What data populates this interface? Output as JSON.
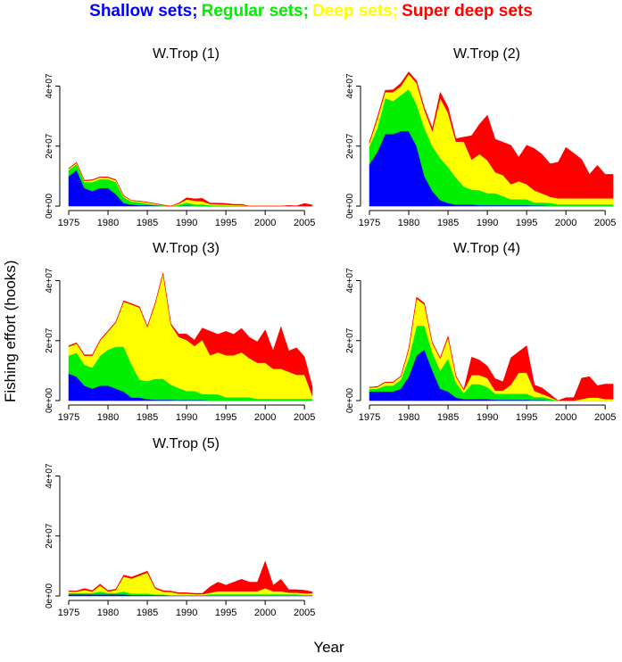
{
  "title_parts": [
    {
      "text": "Shallow sets;",
      "color": "#0000ff"
    },
    {
      "text": "Regular sets;",
      "color": "#00ee00"
    },
    {
      "text": "Deep sets;",
      "color": "#ffff00"
    },
    {
      "text": "Super deep sets",
      "color": "#ff0000"
    }
  ],
  "ylabel": "Fishing effort (hooks)",
  "xlabel": "Year",
  "chart_data": [
    {
      "type": "area",
      "stacked": true,
      "title": "W.Trop (1)",
      "x_ticks": [
        1975,
        1980,
        1985,
        1990,
        1995,
        2000,
        2005
      ],
      "y_ticks": [
        "0e+00",
        "2e+07",
        "4e+07"
      ],
      "y_tick_values": [
        0,
        20000000,
        40000000
      ],
      "xlim": [
        1975,
        2006
      ],
      "ylim": [
        0,
        47000000
      ],
      "x": [
        1975,
        1976,
        1977,
        1978,
        1979,
        1980,
        1981,
        1982,
        1983,
        1984,
        1985,
        1986,
        1987,
        1988,
        1989,
        1990,
        1991,
        1992,
        1993,
        1994,
        1995,
        1996,
        1997,
        1998,
        1999,
        2000,
        2001,
        2002,
        2003,
        2004,
        2005,
        2006
      ],
      "series": [
        {
          "name": "Shallow sets",
          "color": "#0000ff",
          "values": [
            10,
            12,
            6,
            5,
            6,
            6,
            4,
            1,
            0.5,
            0.3,
            0.3,
            0.2,
            0.1,
            0,
            0.1,
            0.2,
            0.1,
            0.1,
            0,
            0,
            0,
            0,
            0,
            0,
            0,
            0,
            0,
            0,
            0,
            0,
            0,
            0
          ]
        },
        {
          "name": "Regular sets",
          "color": "#00ee00",
          "values": [
            2,
            2,
            2,
            3,
            3,
            3,
            4,
            2,
            1,
            1,
            0.5,
            0.3,
            0.1,
            0,
            0.3,
            1,
            0.5,
            0.5,
            0.3,
            0.2,
            0.2,
            0.1,
            0.1,
            0,
            0,
            0,
            0,
            0,
            0,
            0,
            0,
            0
          ]
        },
        {
          "name": "Deep sets",
          "color": "#ffff00",
          "values": [
            0.4,
            0.4,
            0.4,
            0.6,
            0.6,
            0.5,
            0.6,
            0.4,
            0.3,
            0.3,
            0.4,
            0.3,
            0.1,
            0,
            0.4,
            1,
            1.2,
            1,
            0.4,
            0.4,
            0.3,
            0.2,
            0.2,
            0,
            0,
            0,
            0,
            0,
            0,
            0,
            0,
            0
          ]
        },
        {
          "name": "Super deep sets",
          "color": "#ff0000",
          "values": [
            0.2,
            0.2,
            0.2,
            0.2,
            0.2,
            0.2,
            0.2,
            0.1,
            0.1,
            0.1,
            0.1,
            0.1,
            0.1,
            0,
            0.2,
            0.6,
            0.6,
            1,
            0.3,
            0.4,
            0.4,
            0.3,
            0.3,
            0,
            0,
            0,
            0,
            0,
            0.2,
            0.1,
            0.9,
            0.4
          ]
        }
      ]
    },
    {
      "type": "area",
      "stacked": true,
      "title": "W.Trop (2)",
      "x_ticks": [
        1975,
        1980,
        1985,
        1990,
        1995,
        2000,
        2005
      ],
      "y_ticks": [
        "0e+00",
        "2e+07",
        "4e+07"
      ],
      "y_tick_values": [
        0,
        20000000,
        40000000
      ],
      "xlim": [
        1975,
        2006
      ],
      "ylim": [
        0,
        47000000
      ],
      "x": [
        1975,
        1976,
        1977,
        1978,
        1979,
        1980,
        1981,
        1982,
        1983,
        1984,
        1985,
        1986,
        1987,
        1988,
        1989,
        1990,
        1991,
        1992,
        1993,
        1994,
        1995,
        1996,
        1997,
        1998,
        1999,
        2000,
        2001,
        2002,
        2003,
        2004,
        2005,
        2006
      ],
      "series": [
        {
          "name": "Shallow sets",
          "color": "#0000ff",
          "values": [
            14,
            18,
            24,
            24,
            25,
            25,
            20,
            10,
            5,
            2,
            1,
            0.5,
            0.5,
            0.5,
            0.3,
            0.3,
            0.3,
            0.3,
            0.3,
            0.3,
            0.3,
            0.2,
            0.2,
            0.1,
            0.1,
            0.1,
            0.1,
            0.1,
            0.1,
            0.1,
            0.1,
            0.1
          ]
        },
        {
          "name": "Regular sets",
          "color": "#00ee00",
          "values": [
            6,
            8,
            12,
            11,
            12,
            14,
            14,
            16,
            15,
            14,
            12,
            9,
            6,
            5,
            5,
            4,
            4,
            3,
            2,
            2,
            2,
            1,
            1,
            1,
            0.5,
            0.5,
            0.5,
            0.5,
            0.5,
            0.5,
            0.5,
            0.5
          ]
        },
        {
          "name": "Deep sets",
          "color": "#ffff00",
          "values": [
            1,
            3,
            2,
            3,
            3,
            5,
            7,
            6,
            5,
            20,
            18,
            12,
            15,
            10,
            12,
            11,
            7,
            7,
            5,
            6,
            5,
            4,
            3,
            2,
            2,
            2,
            2,
            2,
            2,
            2,
            2,
            2
          ]
        },
        {
          "name": "Super deep sets",
          "color": "#ff0000",
          "values": [
            0.4,
            0.6,
            0.6,
            0.8,
            1,
            0.8,
            0.8,
            0.8,
            1,
            2,
            2,
            1,
            1.5,
            8,
            10,
            15,
            11,
            11,
            13,
            8,
            13,
            14,
            13,
            11,
            12,
            17,
            15,
            13,
            8,
            11,
            8,
            8
          ]
        }
      ]
    },
    {
      "type": "area",
      "stacked": true,
      "title": "W.Trop (3)",
      "x_ticks": [
        1975,
        1980,
        1985,
        1990,
        1995,
        2000,
        2005
      ],
      "y_ticks": [
        "0e+00",
        "2e+07",
        "4e+07"
      ],
      "y_tick_values": [
        0,
        20000000,
        40000000
      ],
      "xlim": [
        1975,
        2006
      ],
      "ylim": [
        0,
        47000000
      ],
      "x": [
        1975,
        1976,
        1977,
        1978,
        1979,
        1980,
        1981,
        1982,
        1983,
        1984,
        1985,
        1986,
        1987,
        1988,
        1989,
        1990,
        1991,
        1992,
        1993,
        1994,
        1995,
        1996,
        1997,
        1998,
        1999,
        2000,
        2001,
        2002,
        2003,
        2004,
        2005,
        2006
      ],
      "series": [
        {
          "name": "Shallow sets",
          "color": "#0000ff",
          "values": [
            9,
            8,
            5,
            4,
            5,
            5,
            4,
            3,
            1,
            1,
            0.5,
            0.3,
            0.3,
            0.3,
            0.2,
            0.2,
            0.2,
            0.2,
            0.1,
            0.1,
            0.1,
            0.1,
            0.1,
            0.1,
            0.1,
            0.1,
            0.1,
            0.1,
            0.1,
            0.1,
            0.1,
            0.1
          ]
        },
        {
          "name": "Regular sets",
          "color": "#00ee00",
          "values": [
            6,
            8,
            7,
            7,
            10,
            12,
            14,
            15,
            11,
            6,
            6,
            7,
            7,
            5,
            4,
            3,
            3,
            2,
            2,
            2,
            1,
            1,
            1,
            1,
            0.5,
            0.5,
            0.5,
            0.5,
            0.5,
            0.5,
            0.5,
            0.5
          ]
        },
        {
          "name": "Deep sets",
          "color": "#ffff00",
          "values": [
            3,
            3,
            3,
            4,
            5,
            6,
            8,
            15,
            20,
            24,
            18,
            25,
            35,
            20,
            17,
            17,
            15,
            18,
            13,
            14,
            14,
            14,
            15,
            13,
            12,
            12,
            10,
            10,
            9,
            8,
            8,
            1
          ]
        },
        {
          "name": "Super deep sets",
          "color": "#ff0000",
          "values": [
            0.3,
            0.3,
            0.3,
            0.3,
            0.3,
            0.3,
            0.3,
            0.3,
            0.3,
            0.3,
            0.3,
            0.3,
            0.3,
            0.3,
            1,
            2,
            2,
            4,
            8,
            6,
            8,
            7,
            8,
            7,
            7,
            11,
            6,
            14,
            7,
            9,
            6,
            3
          ]
        }
      ]
    },
    {
      "type": "area",
      "stacked": true,
      "title": "W.Trop (4)",
      "x_ticks": [
        1975,
        1980,
        1985,
        1990,
        1995,
        2000,
        2005
      ],
      "y_ticks": [
        "0e+00",
        "2e+07",
        "4e+07"
      ],
      "y_tick_values": [
        0,
        20000000,
        40000000
      ],
      "xlim": [
        1975,
        2006
      ],
      "ylim": [
        0,
        47000000
      ],
      "x": [
        1975,
        1976,
        1977,
        1978,
        1979,
        1980,
        1981,
        1982,
        1983,
        1984,
        1985,
        1986,
        1987,
        1988,
        1989,
        1990,
        1991,
        1992,
        1993,
        1994,
        1995,
        1996,
        1997,
        1998,
        1999,
        2000,
        2001,
        2002,
        2003,
        2004,
        2005,
        2006
      ],
      "series": [
        {
          "name": "Shallow sets",
          "color": "#0000ff",
          "values": [
            3,
            3,
            3,
            3,
            4,
            8,
            15,
            17,
            10,
            4,
            3,
            1,
            0.5,
            0.5,
            0.5,
            0.5,
            0.3,
            0.3,
            0.3,
            0.3,
            0.3,
            0.2,
            0.2,
            0.1,
            0,
            0,
            0,
            0,
            0,
            0,
            0,
            0
          ]
        },
        {
          "name": "Regular sets",
          "color": "#00ee00",
          "values": [
            1,
            1,
            2,
            2,
            3,
            6,
            10,
            8,
            6,
            6,
            11,
            5,
            2,
            5,
            5,
            4,
            2,
            2,
            2,
            2,
            2,
            1,
            1,
            0.5,
            0,
            0,
            0,
            0,
            0,
            0,
            0,
            0
          ]
        },
        {
          "name": "Deep sets",
          "color": "#ffff00",
          "values": [
            0.3,
            0.5,
            1,
            1,
            1,
            3,
            9,
            7,
            3,
            4,
            7,
            2,
            1,
            3,
            3,
            3,
            1,
            1,
            3,
            7,
            7,
            2,
            1,
            0.5,
            0,
            0,
            0,
            0.5,
            1,
            1,
            0.5,
            0.5
          ]
        },
        {
          "name": "Super deep sets",
          "color": "#ff0000",
          "values": [
            0.2,
            0.2,
            0.2,
            0.2,
            0.2,
            0.3,
            0.5,
            0.5,
            0.3,
            0.3,
            0.5,
            0.3,
            0.2,
            6,
            5,
            4,
            4,
            3,
            9,
            7,
            9,
            2,
            2,
            1,
            0,
            1,
            1,
            7,
            7,
            4,
            5,
            5
          ]
        }
      ]
    },
    {
      "type": "area",
      "stacked": true,
      "title": "W.Trop (5)",
      "x_ticks": [
        1975,
        1980,
        1985,
        1990,
        1995,
        2000,
        2005
      ],
      "y_ticks": [
        "0e+00",
        "2e+07",
        "4e+07"
      ],
      "y_tick_values": [
        0,
        20000000,
        40000000
      ],
      "xlim": [
        1975,
        2006
      ],
      "ylim": [
        0,
        47000000
      ],
      "x": [
        1975,
        1976,
        1977,
        1978,
        1979,
        1980,
        1981,
        1982,
        1983,
        1984,
        1985,
        1986,
        1987,
        1988,
        1989,
        1990,
        1991,
        1992,
        1993,
        1994,
        1995,
        1996,
        1997,
        1998,
        1999,
        2000,
        2001,
        2002,
        2003,
        2004,
        2005,
        2006
      ],
      "series": [
        {
          "name": "Shallow sets",
          "color": "#0000ff",
          "values": [
            0.5,
            0.5,
            0.5,
            0.5,
            0.5,
            0.5,
            0.5,
            0.5,
            0.3,
            0.3,
            0.3,
            0.2,
            0.2,
            0.1,
            0.1,
            0.1,
            0.1,
            0.1,
            0.1,
            0.1,
            0.1,
            0.1,
            0.1,
            0.1,
            0.1,
            0.1,
            0.1,
            0.1,
            0.1,
            0.1,
            0.1,
            0.1
          ]
        },
        {
          "name": "Regular sets",
          "color": "#00ee00",
          "values": [
            0.5,
            0.5,
            0.5,
            0.5,
            1,
            0.5,
            0.5,
            1,
            0.5,
            0.5,
            0.5,
            0.3,
            0.3,
            0.2,
            0.2,
            0.2,
            0.2,
            0.2,
            0.5,
            0.5,
            0.5,
            0.5,
            0.5,
            0.5,
            0.5,
            0.5,
            0.5,
            0.5,
            0.5,
            0.5,
            0.3,
            0.3
          ]
        },
        {
          "name": "Deep sets",
          "color": "#ffff00",
          "values": [
            0.5,
            0.5,
            1,
            0.5,
            2,
            0.5,
            1,
            5,
            5,
            6,
            7,
            2,
            1,
            1,
            0.5,
            0.5,
            0.3,
            0.3,
            0.5,
            1,
            1,
            1,
            1,
            1,
            1,
            2,
            1,
            1,
            0.5,
            0.5,
            0.5,
            0.5
          ]
        },
        {
          "name": "Super deep sets",
          "color": "#ff0000",
          "values": [
            0.2,
            0.2,
            0.5,
            0.3,
            0.5,
            0.3,
            0.3,
            0.5,
            0.5,
            0.5,
            0.5,
            0.3,
            0.3,
            0.3,
            0.3,
            0.3,
            0.3,
            0.3,
            2,
            3,
            2,
            3,
            4,
            3,
            3,
            9,
            2,
            4,
            1,
            1,
            1,
            0.5
          ]
        }
      ]
    }
  ]
}
